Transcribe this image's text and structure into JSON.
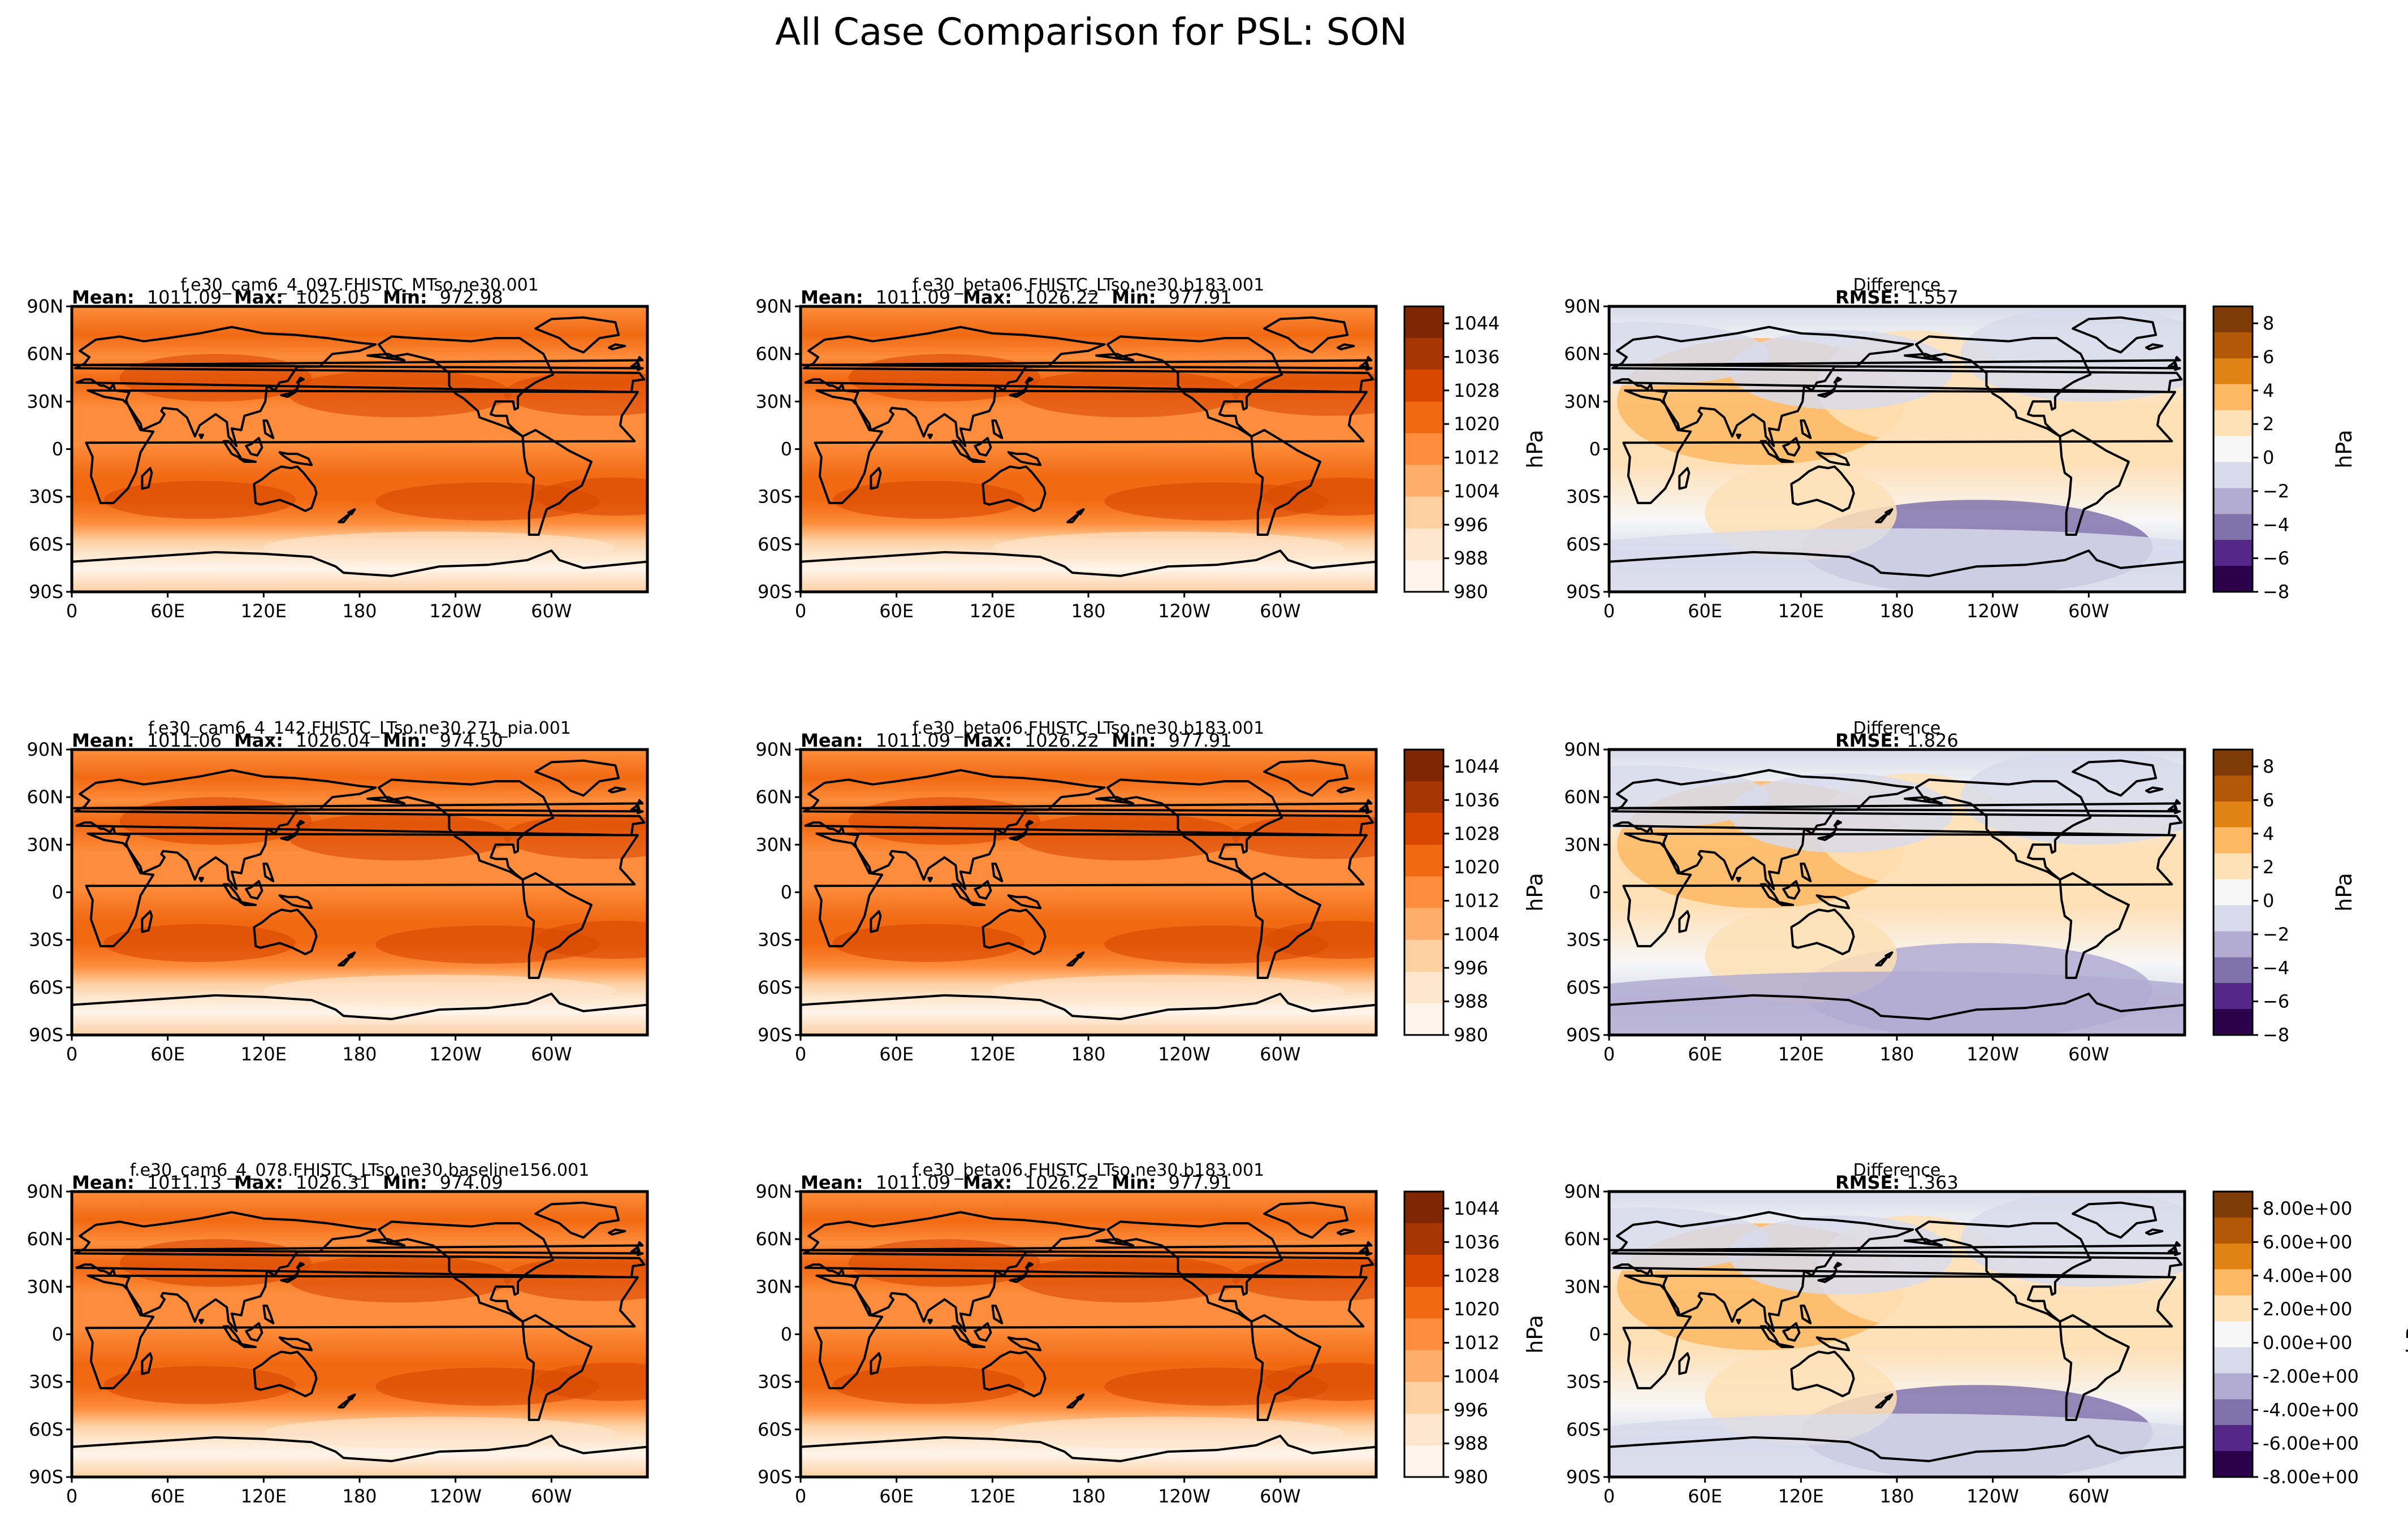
{
  "figure": {
    "suptitle": "All Case Comparison for PSL: SON",
    "lon_ticks": [
      "0",
      "60E",
      "120E",
      "180",
      "120W",
      "60W"
    ],
    "lat_ticks": [
      "90N",
      "60N",
      "30N",
      "0",
      "30S",
      "60S",
      "90S"
    ],
    "colors": {
      "field_cmap": [
        "#fff5eb",
        "#fee6ce",
        "#fdd0a2",
        "#fdae6b",
        "#fd8d3c",
        "#f16913",
        "#d94801",
        "#a63603",
        "#7f2704"
      ],
      "diff_cmap": [
        "#2d004b",
        "#542788",
        "#8073ac",
        "#b2abd2",
        "#d8daeb",
        "#f7f7f7",
        "#fee0b6",
        "#fdb863",
        "#e08214",
        "#b35806",
        "#7f3b08"
      ]
    }
  },
  "rows": [
    {
      "test": {
        "case": "f.e30_cam6_4_097.FHISTC_MTso.ne30.001",
        "mean": "1011.09",
        "max": "1025.05",
        "min": "972.98"
      },
      "ref": {
        "case": "f.e30_beta06.FHISTC_LTso.ne30.b183.001",
        "mean": "1011.09",
        "max": "1026.22",
        "min": "977.91"
      },
      "diff": {
        "title": "Difference",
        "rmse": "1.557"
      },
      "field_colorbar": {
        "ticks": [
          "1044",
          "1036",
          "1028",
          "1020",
          "1012",
          "1004",
          "996",
          "988",
          "980"
        ],
        "label": "hPa"
      },
      "diff_colorbar": {
        "ticks": [
          "8",
          "6",
          "4",
          "2",
          "0",
          "−2",
          "−4",
          "−6",
          "−8"
        ],
        "label": "hPa"
      }
    },
    {
      "test": {
        "case": "f.e30_cam6_4_142.FHISTC_LTso.ne30.271_pia.001",
        "mean": "1011.06",
        "max": "1026.04",
        "min": "974.50"
      },
      "ref": {
        "case": "f.e30_beta06.FHISTC_LTso.ne30.b183.001",
        "mean": "1011.09",
        "max": "1026.22",
        "min": "977.91"
      },
      "diff": {
        "title": "Difference",
        "rmse": "1.826"
      },
      "field_colorbar": {
        "ticks": [
          "1044",
          "1036",
          "1028",
          "1020",
          "1012",
          "1004",
          "996",
          "988",
          "980"
        ],
        "label": "hPa"
      },
      "diff_colorbar": {
        "ticks": [
          "8",
          "6",
          "4",
          "2",
          "0",
          "−2",
          "−4",
          "−6",
          "−8"
        ],
        "label": "hPa"
      }
    },
    {
      "test": {
        "case": "f.e30_cam6_4_078.FHISTC_LTso.ne30.baseline156.001",
        "mean": "1011.13",
        "max": "1026.31",
        "min": "974.09"
      },
      "ref": {
        "case": "f.e30_beta06.FHISTC_LTso.ne30.b183.001",
        "mean": "1011.09",
        "max": "1026.22",
        "min": "977.91"
      },
      "diff": {
        "title": "Difference",
        "rmse": "1.363"
      },
      "field_colorbar": {
        "ticks": [
          "1044",
          "1036",
          "1028",
          "1020",
          "1012",
          "1004",
          "996",
          "988",
          "980"
        ],
        "label": "hPa"
      },
      "diff_colorbar": {
        "ticks": [
          "8.00e+00",
          "6.00e+00",
          "4.00e+00",
          "2.00e+00",
          "0.00e+00",
          "-2.00e+00",
          "-4.00e+00",
          "-6.00e+00",
          "-8.00e+00"
        ],
        "label": "hPa"
      }
    }
  ],
  "stat_labels": {
    "mean": "Mean:",
    "max": "Max:",
    "min": "Min:",
    "rmse": "RMSE:"
  },
  "chart_data": [
    {
      "type": "heatmap",
      "row": 1,
      "panel": "test",
      "title": "f.e30_cam6_4_097.FHISTC_MTso.ne30.001",
      "variable": "PSL",
      "units": "hPa",
      "mean": 1011.09,
      "max": 1025.05,
      "min": 972.98,
      "clim": [
        980,
        1044
      ]
    },
    {
      "type": "heatmap",
      "row": 1,
      "panel": "reference",
      "title": "f.e30_beta06.FHISTC_LTso.ne30.b183.001",
      "variable": "PSL",
      "units": "hPa",
      "mean": 1011.09,
      "max": 1026.22,
      "min": 977.91,
      "clim": [
        980,
        1044
      ]
    },
    {
      "type": "heatmap",
      "row": 1,
      "panel": "difference",
      "title": "Difference",
      "units": "hPa",
      "rmse": 1.557,
      "clim": [
        -8,
        8
      ]
    },
    {
      "type": "heatmap",
      "row": 2,
      "panel": "test",
      "title": "f.e30_cam6_4_142.FHISTC_LTso.ne30.271_pia.001",
      "variable": "PSL",
      "units": "hPa",
      "mean": 1011.06,
      "max": 1026.04,
      "min": 974.5,
      "clim": [
        980,
        1044
      ]
    },
    {
      "type": "heatmap",
      "row": 2,
      "panel": "reference",
      "title": "f.e30_beta06.FHISTC_LTso.ne30.b183.001",
      "variable": "PSL",
      "units": "hPa",
      "mean": 1011.09,
      "max": 1026.22,
      "min": 977.91,
      "clim": [
        980,
        1044
      ]
    },
    {
      "type": "heatmap",
      "row": 2,
      "panel": "difference",
      "title": "Difference",
      "units": "hPa",
      "rmse": 1.826,
      "clim": [
        -8,
        8
      ]
    },
    {
      "type": "heatmap",
      "row": 3,
      "panel": "test",
      "title": "f.e30_cam6_4_078.FHISTC_LTso.ne30.baseline156.001",
      "variable": "PSL",
      "units": "hPa",
      "mean": 1011.13,
      "max": 1026.31,
      "min": 974.09,
      "clim": [
        980,
        1044
      ]
    },
    {
      "type": "heatmap",
      "row": 3,
      "panel": "reference",
      "title": "f.e30_beta06.FHISTC_LTso.ne30.b183.001",
      "variable": "PSL",
      "units": "hPa",
      "mean": 1011.09,
      "max": 1026.22,
      "min": 977.91,
      "clim": [
        980,
        1044
      ]
    },
    {
      "type": "heatmap",
      "row": 3,
      "panel": "difference",
      "title": "Difference",
      "units": "hPa",
      "rmse": 1.363,
      "clim": [
        -8,
        8
      ]
    }
  ]
}
